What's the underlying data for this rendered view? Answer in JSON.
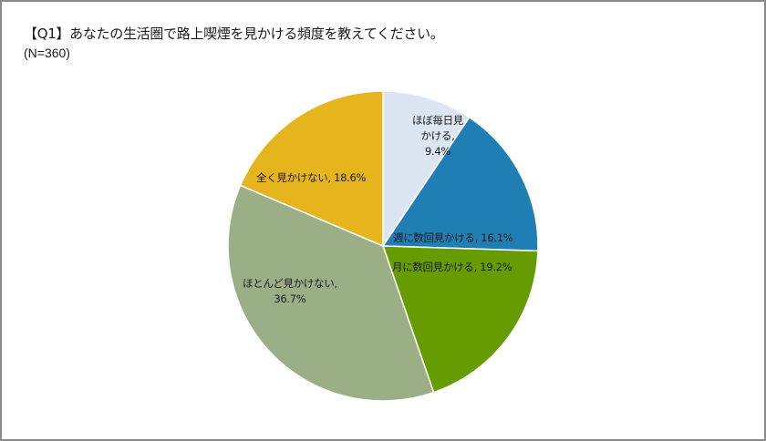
{
  "header": {
    "title": "【Q1】あなたの生活圏で路上喫煙を見かける頻度を教えてください。",
    "subtitle": "(N=360)"
  },
  "labels": {
    "daily_l1": "ほぼ毎日見",
    "daily_l2": "かける,",
    "daily_l3": "9.4%",
    "weekly": "週に数回見かける, 16.1%",
    "monthly": "月に数回見かける, 19.2%",
    "rarely_l1": "ほとんど見かけない,",
    "rarely_l2": "36.7%",
    "never": "全く見かけない, 18.6%"
  },
  "chart_data": {
    "type": "pie",
    "title": "【Q1】あなたの生活圏で路上喫煙を見かける頻度を教えてください。",
    "subtitle": "(N=360)",
    "categories": [
      "ほぼ毎日見かける",
      "週に数回見かける",
      "月に数回見かける",
      "ほとんど見かけない",
      "全く見かけない"
    ],
    "values": [
      9.4,
      16.1,
      19.2,
      36.7,
      18.6
    ],
    "unit": "%",
    "colors": [
      "#dce6f2",
      "#1f7fb5",
      "#669c00",
      "#9aaf86",
      "#e6b41c"
    ],
    "start_angle": "12 o'clock",
    "direction": "clockwise",
    "legend": "none (data labels on slices)"
  }
}
